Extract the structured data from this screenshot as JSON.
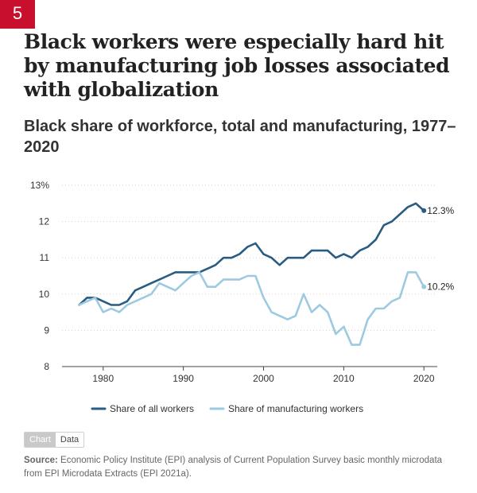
{
  "badge": "5",
  "title": "Black workers were especially hard hit by manufacturing job losses associated with globalization",
  "subtitle": "Black share of workforce, total and manufacturing, 1977–2020",
  "toggle": {
    "chart_label": "Chart",
    "data_label": "Data"
  },
  "source": {
    "label": "Source:",
    "text": "Economic Policy Institute (EPI) analysis of Current Population Survey basic monthly microdata from EPI Microdata Extracts (EPI 2021a)."
  },
  "chart_data": {
    "type": "line",
    "title": "",
    "xlabel": "",
    "ylabel": "",
    "xlim": [
      1977,
      2020
    ],
    "ylim": [
      8,
      13
    ],
    "x_ticks": [
      1980,
      1990,
      2000,
      2010,
      2020
    ],
    "y_ticks": [
      8,
      9,
      10,
      11,
      12,
      13
    ],
    "y_tick_labels": [
      "8",
      "9",
      "10",
      "11",
      "12",
      "13%"
    ],
    "grid": true,
    "legend_position": "bottom",
    "x": [
      1977,
      1978,
      1979,
      1980,
      1981,
      1982,
      1983,
      1984,
      1985,
      1986,
      1987,
      1988,
      1989,
      1990,
      1991,
      1992,
      1993,
      1994,
      1995,
      1996,
      1997,
      1998,
      1999,
      2000,
      2001,
      2002,
      2003,
      2004,
      2005,
      2006,
      2007,
      2008,
      2009,
      2010,
      2011,
      2012,
      2013,
      2014,
      2015,
      2016,
      2017,
      2018,
      2019,
      2020
    ],
    "series": [
      {
        "name": "Share of all workers",
        "color": "#2a5b80",
        "end_label": "12.3%",
        "values": [
          9.7,
          9.9,
          9.9,
          9.8,
          9.7,
          9.7,
          9.8,
          10.1,
          10.2,
          10.3,
          10.4,
          10.5,
          10.6,
          10.6,
          10.6,
          10.6,
          10.7,
          10.8,
          11.0,
          11.0,
          11.1,
          11.3,
          11.4,
          11.1,
          11.0,
          10.8,
          11.0,
          11.0,
          11.0,
          11.2,
          11.2,
          11.2,
          11.0,
          11.1,
          11.0,
          11.2,
          11.3,
          11.5,
          11.9,
          12.0,
          12.2,
          12.4,
          12.5,
          12.3
        ]
      },
      {
        "name": "Share of manufacturing workers",
        "color": "#9ecae1",
        "end_label": "10.2%",
        "values": [
          9.7,
          9.8,
          9.9,
          9.5,
          9.6,
          9.5,
          9.7,
          9.8,
          9.9,
          10.0,
          10.3,
          10.2,
          10.1,
          10.3,
          10.5,
          10.6,
          10.2,
          10.2,
          10.4,
          10.4,
          10.4,
          10.5,
          10.5,
          9.9,
          9.5,
          9.4,
          9.3,
          9.4,
          10.0,
          9.5,
          9.7,
          9.5,
          8.9,
          9.1,
          8.6,
          8.6,
          9.3,
          9.6,
          9.6,
          9.8,
          9.9,
          10.6,
          10.6,
          10.2
        ]
      }
    ]
  }
}
